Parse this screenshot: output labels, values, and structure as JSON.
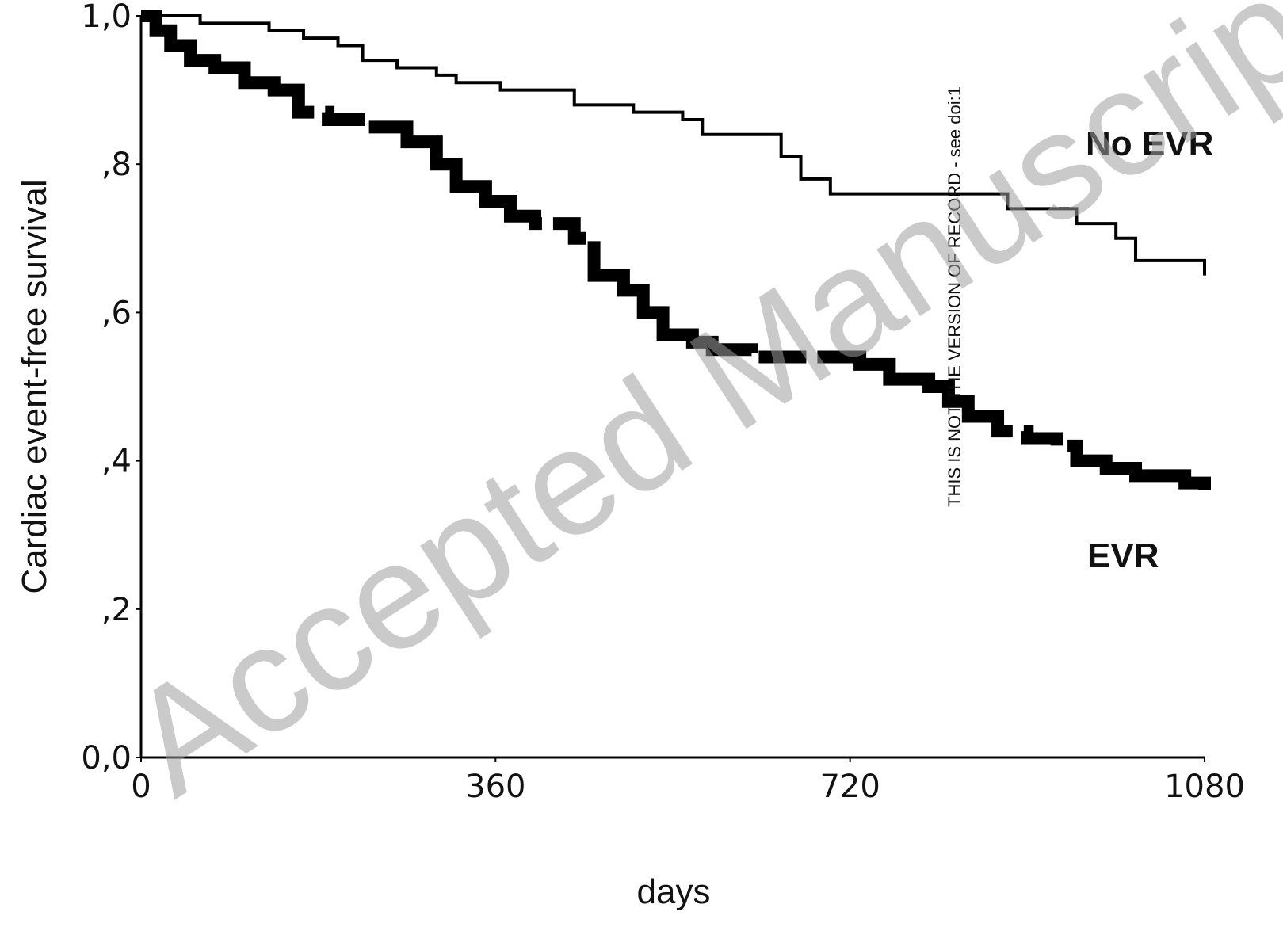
{
  "chart_data": {
    "type": "line",
    "title": "",
    "xlabel": "days",
    "ylabel": "Cardiac event-free survival",
    "xlim": [
      0,
      1080
    ],
    "ylim": [
      0,
      1.0
    ],
    "x_ticks": [
      "0",
      "360",
      "720",
      "1080"
    ],
    "y_ticks": [
      "0,0",
      ",2",
      ",4",
      ",6",
      ",8",
      "1,0"
    ],
    "grid": false,
    "series": [
      {
        "name": "No EVR",
        "style": "thin-solid",
        "points": [
          [
            0,
            1.0
          ],
          [
            40,
            1.0
          ],
          [
            60,
            0.99
          ],
          [
            110,
            0.99
          ],
          [
            130,
            0.98
          ],
          [
            165,
            0.97
          ],
          [
            200,
            0.96
          ],
          [
            225,
            0.94
          ],
          [
            260,
            0.93
          ],
          [
            300,
            0.92
          ],
          [
            320,
            0.91
          ],
          [
            365,
            0.9
          ],
          [
            440,
            0.88
          ],
          [
            500,
            0.87
          ],
          [
            550,
            0.86
          ],
          [
            570,
            0.84
          ],
          [
            630,
            0.84
          ],
          [
            650,
            0.81
          ],
          [
            670,
            0.78
          ],
          [
            700,
            0.76
          ],
          [
            860,
            0.76
          ],
          [
            880,
            0.74
          ],
          [
            930,
            0.74
          ],
          [
            950,
            0.72
          ],
          [
            990,
            0.7
          ],
          [
            1010,
            0.67
          ],
          [
            1080,
            0.65
          ]
        ]
      },
      {
        "name": "EVR",
        "style": "thick-dashed",
        "points": [
          [
            0,
            1.0
          ],
          [
            15,
            0.98
          ],
          [
            30,
            0.96
          ],
          [
            50,
            0.94
          ],
          [
            75,
            0.93
          ],
          [
            105,
            0.91
          ],
          [
            135,
            0.9
          ],
          [
            160,
            0.87
          ],
          [
            190,
            0.86
          ],
          [
            230,
            0.85
          ],
          [
            270,
            0.83
          ],
          [
            300,
            0.8
          ],
          [
            320,
            0.77
          ],
          [
            350,
            0.75
          ],
          [
            375,
            0.73
          ],
          [
            400,
            0.72
          ],
          [
            440,
            0.7
          ],
          [
            460,
            0.65
          ],
          [
            490,
            0.63
          ],
          [
            510,
            0.6
          ],
          [
            530,
            0.57
          ],
          [
            560,
            0.56
          ],
          [
            580,
            0.55
          ],
          [
            620,
            0.54
          ],
          [
            720,
            0.54
          ],
          [
            730,
            0.53
          ],
          [
            760,
            0.51
          ],
          [
            800,
            0.5
          ],
          [
            820,
            0.48
          ],
          [
            840,
            0.46
          ],
          [
            870,
            0.44
          ],
          [
            900,
            0.43
          ],
          [
            930,
            0.42
          ],
          [
            950,
            0.4
          ],
          [
            980,
            0.39
          ],
          [
            1010,
            0.38
          ],
          [
            1060,
            0.37
          ],
          [
            1080,
            0.36
          ]
        ]
      }
    ],
    "annotations": {
      "no_evr_label": "No EVR",
      "evr_label": "EVR"
    }
  },
  "watermarks": {
    "vertical_notice": "THIS IS NOT THE VERSION OF RECORD - see doi:1",
    "diagonal_text": "Accepted Manuscript"
  }
}
